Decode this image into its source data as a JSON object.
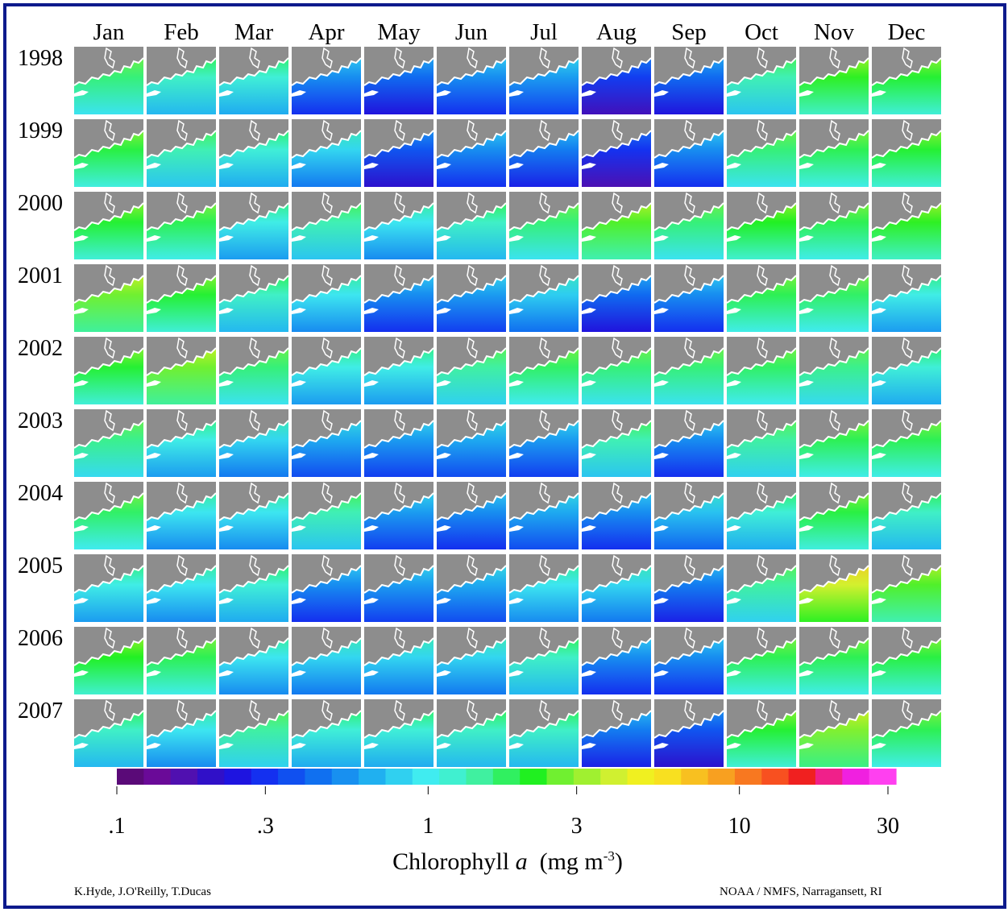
{
  "chart_data": {
    "type": "heatmap",
    "description_rows": "years",
    "description_cols": "months",
    "months": [
      "Jan",
      "Feb",
      "Mar",
      "Apr",
      "May",
      "Jun",
      "Jul",
      "Aug",
      "Sep",
      "Oct",
      "Nov",
      "Dec"
    ],
    "years": [
      "1998",
      "1999",
      "2000",
      "2001",
      "2002",
      "2003",
      "2004",
      "2005",
      "2006",
      "2007"
    ],
    "log_scale": true,
    "colorbar_range": [
      0.1,
      30
    ],
    "colorbar_ticks": [
      {
        "value": 0.1,
        "label": ".1"
      },
      {
        "value": 0.3,
        "label": ".3"
      },
      {
        "value": 1,
        "label": "1"
      },
      {
        "value": 3,
        "label": "3"
      },
      {
        "value": 10,
        "label": "10"
      },
      {
        "value": 30,
        "label": "30"
      }
    ],
    "colorbar_label_prefix": "Chlorophyll",
    "colorbar_label_var": "a",
    "colorbar_label_unit": "(mg m",
    "colorbar_label_exp": "-3",
    "colorbar_label_close": ")",
    "colorbar_colors": [
      "#5a0a78",
      "#6a0a98",
      "#5010b0",
      "#3010c8",
      "#1e14e0",
      "#1430f0",
      "#1050f0",
      "#1070f0",
      "#1890f0",
      "#20b0f0",
      "#30d0f0",
      "#40ecf0",
      "#40f0d0",
      "#40f0a0",
      "#30f060",
      "#20f020",
      "#70f030",
      "#a0f030",
      "#d0f030",
      "#f0f020",
      "#f8e020",
      "#f8c020",
      "#f8a020",
      "#f87820",
      "#f85020",
      "#f02020",
      "#f0208a",
      "#f020e0",
      "#ff40f0"
    ],
    "tile_chlorophyll_mg_m3": [
      [
        1.6,
        1.2,
        1.1,
        0.5,
        0.4,
        0.5,
        0.55,
        0.3,
        0.4,
        1.3,
        2.2,
        2.0
      ],
      [
        1.9,
        1.3,
        1.1,
        0.8,
        0.35,
        0.5,
        0.45,
        0.28,
        0.5,
        1.6,
        1.8,
        2.0
      ],
      [
        2.0,
        1.8,
        1.0,
        1.3,
        0.9,
        1.2,
        1.6,
        2.4,
        1.6,
        2.1,
        1.8,
        2.2
      ],
      [
        2.6,
        2.0,
        1.2,
        0.9,
        0.5,
        0.55,
        0.75,
        0.4,
        0.5,
        1.8,
        1.7,
        1.0
      ],
      [
        2.0,
        2.6,
        1.6,
        1.0,
        1.0,
        1.4,
        1.7,
        1.6,
        1.6,
        1.7,
        1.5,
        1.1
      ],
      [
        1.5,
        1.0,
        0.8,
        0.6,
        0.55,
        0.6,
        0.55,
        1.3,
        0.5,
        1.4,
        1.8,
        1.8
      ],
      [
        1.7,
        0.9,
        0.9,
        1.3,
        0.55,
        0.5,
        0.6,
        0.5,
        0.7,
        1.1,
        1.9,
        1.2
      ],
      [
        1.0,
        0.9,
        1.1,
        0.5,
        0.55,
        0.6,
        0.9,
        0.8,
        0.45,
        1.4,
        4.0,
        2.4
      ],
      [
        2.1,
        1.8,
        0.9,
        0.8,
        0.8,
        0.8,
        1.2,
        0.5,
        0.5,
        1.8,
        1.8,
        1.9
      ],
      [
        1.2,
        0.9,
        1.4,
        1.1,
        1.1,
        1.2,
        1.2,
        0.45,
        0.35,
        2.0,
        2.8,
        1.8
      ]
    ]
  },
  "credits": {
    "left": "K.Hyde, J.O'Reilly, T.Ducas",
    "right": "NOAA / NMFS,  Narragansett, RI"
  },
  "colors": {
    "frame": "#0d1a8c",
    "land": "#8d8d8d"
  }
}
